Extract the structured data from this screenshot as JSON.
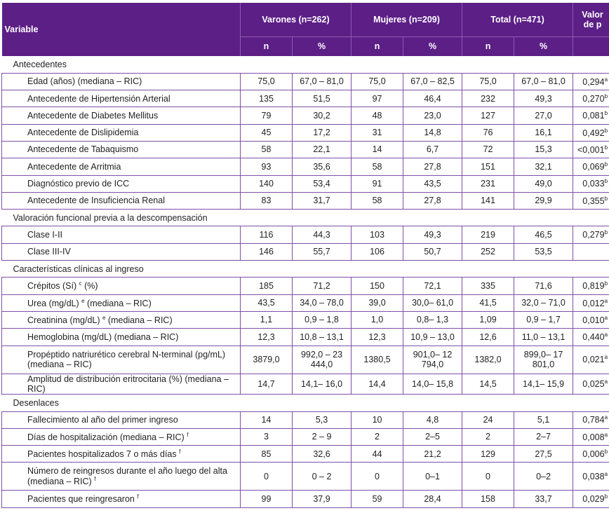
{
  "header": {
    "variable": "Variable",
    "groups": [
      "Varones (n=262)",
      "Mujeres (n=209)",
      "Total (n=471)"
    ],
    "pvalue_line1": "Valor",
    "pvalue_line2": "de p",
    "sub": [
      "n",
      "%",
      "n",
      "%",
      "n",
      "%"
    ]
  },
  "colors": {
    "header_bg": "#5c1f86",
    "rule": "#7f4fa5"
  },
  "rows": [
    {
      "section": "Antecedentes"
    },
    {
      "label": "Edad (años) (mediana – RIC)",
      "v": [
        "75,0",
        "67,0 – 81,0",
        "75,0",
        "67,0 – 82,5",
        "75,0",
        "67,0 – 81,0"
      ],
      "p": "0,294",
      "ps": "a"
    },
    {
      "label": "Antecedente de Hipertensión Arterial",
      "v": [
        "135",
        "51,5",
        "97",
        "46,4",
        "232",
        "49,3"
      ],
      "p": "0,270",
      "ps": "b"
    },
    {
      "label": "Antecedente de Diabetes Mellitus",
      "v": [
        "79",
        "30,2",
        "48",
        "23,0",
        "127",
        "27,0"
      ],
      "p": "0,081",
      "ps": "b"
    },
    {
      "label": "Antecedente de Dislipidemia",
      "v": [
        "45",
        "17,2",
        "31",
        "14,8",
        "76",
        "16,1"
      ],
      "p": "0,492",
      "ps": "b"
    },
    {
      "label": "Antecedente de Tabaquismo",
      "v": [
        "58",
        "22,1",
        "14",
        "6,7",
        "72",
        "15,3"
      ],
      "p": "<0,001",
      "ps": "b"
    },
    {
      "label": "Antecedente de Arritmia",
      "v": [
        "93",
        "35,6",
        "58",
        "27,8",
        "151",
        "32,1"
      ],
      "p": "0,069",
      "ps": "b"
    },
    {
      "label": "Diagnóstico previo de ICC",
      "v": [
        "140",
        "53,4",
        "91",
        "43,5",
        "231",
        "49,0"
      ],
      "p": "0,033",
      "ps": "b"
    },
    {
      "label": "Antecedente de Insuficiencia Renal",
      "v": [
        "83",
        "31,7",
        "58",
        "27,8",
        "141",
        "29,9"
      ],
      "p": "0,355",
      "ps": "b"
    },
    {
      "section": "Valoración funcional previa a la descompensación"
    },
    {
      "label": "Clase I-II",
      "v": [
        "116",
        "44,3",
        "103",
        "49,3",
        "219",
        "46,5"
      ],
      "p": "0,279",
      "ps": "b"
    },
    {
      "label": "Clase III-IV",
      "v": [
        "146",
        "55,7",
        "106",
        "50,7",
        "252",
        "53,5"
      ],
      "p": "",
      "ps": ""
    },
    {
      "section": "Características clínicas al ingreso"
    },
    {
      "label": "Crépitos (Sí) ",
      "ls": "c",
      "lt": " (%)",
      "v": [
        "185",
        "71,2",
        "150",
        "72,1",
        "335",
        "71,6"
      ],
      "p": "0,819",
      "ps": "b"
    },
    {
      "label": "Urea (mg/dL) ",
      "ls": "e",
      "lt": " (mediana – RIC)",
      "v": [
        "43,5",
        "34,0 – 78,0",
        "39,0",
        "30,0– 61,0",
        "41,5",
        "32,0 – 71,0"
      ],
      "p": "0,012",
      "ps": "a"
    },
    {
      "label": "Creatinina (mg/dL) ",
      "ls": "e",
      "lt": " (mediana – RIC)",
      "v": [
        "1,1",
        "0,9 – 1,8",
        "1,0",
        "0,8– 1,3",
        "1,09",
        "0,9 – 1,7"
      ],
      "p": "0,010",
      "ps": "a"
    },
    {
      "label": "Hemoglobina (mg/dL) (mediana – RIC)",
      "v": [
        "12,3",
        "10,8 – 13,1",
        "12,3",
        "10,9 – 13,0",
        "12,6",
        "11,0 – 13,1"
      ],
      "p": "0,440",
      "ps": "a"
    },
    {
      "label": "Propéptido natriurético cerebral N-terminal (pg/mL) (mediana – RIC)",
      "tall": true,
      "v": [
        "3879,0",
        "992,0 – 23 444,0",
        "1380,5",
        "901,0– 12 794,0",
        "1382,0",
        "899,0– 17 801,0"
      ],
      "p": "0,021",
      "ps": "a"
    },
    {
      "label": "Amplitud de distribución eritrocitaria (%) (mediana – RIC)",
      "v": [
        "14,7",
        "14,1– 16,0",
        "14,4",
        "14,0– 15,8",
        "14,5",
        "14,1– 15,9"
      ],
      "p": "0,025",
      "ps": "a"
    },
    {
      "section": "Desenlaces"
    },
    {
      "label": "Fallecimiento al año del primer ingreso",
      "v": [
        "14",
        "5,3",
        "10",
        "4,8",
        "24",
        "5,1"
      ],
      "p": "0,784",
      "ps": "a"
    },
    {
      "label": "Días de hospitalización (mediana – RIC) ",
      "ls": "f",
      "lt": "",
      "v": [
        "3",
        "2 – 9",
        "2",
        "2–5",
        "2",
        "2–7"
      ],
      "p": "0,008",
      "ps": "a"
    },
    {
      "label": "Pacientes hospitalizados 7 o más días ",
      "ls": "f",
      "lt": "",
      "v": [
        "85",
        "32,6",
        "44",
        "21,2",
        "129",
        "27,5"
      ],
      "p": "0,006",
      "ps": "b"
    },
    {
      "label": "Número de reingresos durante el año luego del alta (mediana – RIC) ",
      "ls": "f",
      "lt": "",
      "tall": true,
      "v": [
        "0",
        "0 – 2",
        "0",
        "0–1",
        "0",
        "0–2"
      ],
      "p": "0,038",
      "ps": "a"
    },
    {
      "label": "Pacientes que reingresaron ",
      "ls": "f",
      "lt": "",
      "v": [
        "99",
        "37,9",
        "59",
        "28,4",
        "158",
        "33,7"
      ],
      "p": "0,029",
      "ps": "b"
    }
  ]
}
